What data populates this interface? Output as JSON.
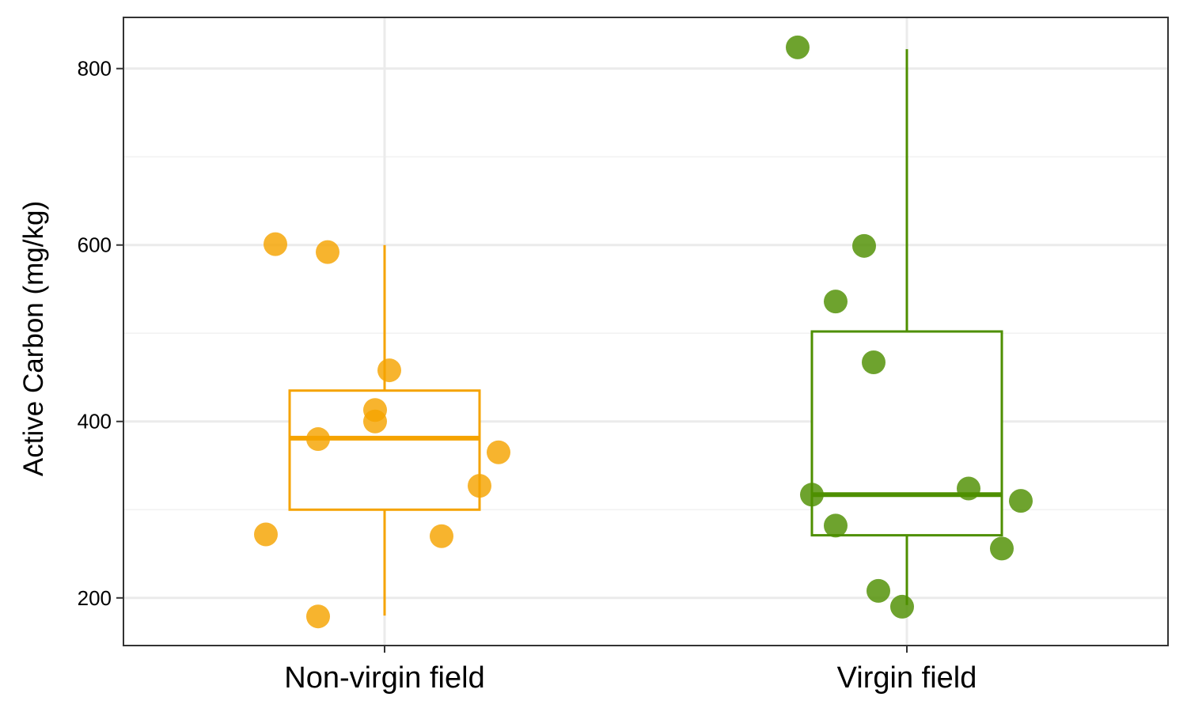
{
  "chart_data": {
    "type": "box",
    "ylabel": "Active Carbon (mg/kg)",
    "xlabel": "",
    "ylim": [
      146,
      858
    ],
    "yticks": [
      200,
      400,
      600,
      800
    ],
    "categories": [
      "Non-virgin field",
      "Virgin field"
    ],
    "grid": true,
    "legend": "none",
    "groups": [
      {
        "name": "Non-virgin field",
        "color": "#F5A300",
        "box": {
          "min": 180,
          "q1": 300,
          "median": 381,
          "q3": 435,
          "max": 600
        },
        "points": [
          {
            "offset": -0.23,
            "y": 601
          },
          {
            "offset": -0.12,
            "y": 592
          },
          {
            "offset": 0.01,
            "y": 458
          },
          {
            "offset": -0.02,
            "y": 413
          },
          {
            "offset": -0.02,
            "y": 400
          },
          {
            "offset": -0.14,
            "y": 380
          },
          {
            "offset": 0.24,
            "y": 365
          },
          {
            "offset": 0.2,
            "y": 327
          },
          {
            "offset": -0.25,
            "y": 272
          },
          {
            "offset": 0.12,
            "y": 270
          },
          {
            "offset": -0.14,
            "y": 179
          }
        ]
      },
      {
        "name": "Virgin field",
        "color": "#4E8F00",
        "box": {
          "min": 192,
          "q1": 271,
          "median": 317,
          "q3": 502,
          "max": 822
        },
        "points": [
          {
            "offset": -0.23,
            "y": 824
          },
          {
            "offset": -0.09,
            "y": 599
          },
          {
            "offset": -0.15,
            "y": 536
          },
          {
            "offset": -0.07,
            "y": 467
          },
          {
            "offset": 0.13,
            "y": 324
          },
          {
            "offset": -0.2,
            "y": 317
          },
          {
            "offset": 0.24,
            "y": 310
          },
          {
            "offset": -0.15,
            "y": 282
          },
          {
            "offset": 0.2,
            "y": 256
          },
          {
            "offset": -0.06,
            "y": 208
          },
          {
            "offset": -0.01,
            "y": 190
          }
        ]
      }
    ]
  }
}
